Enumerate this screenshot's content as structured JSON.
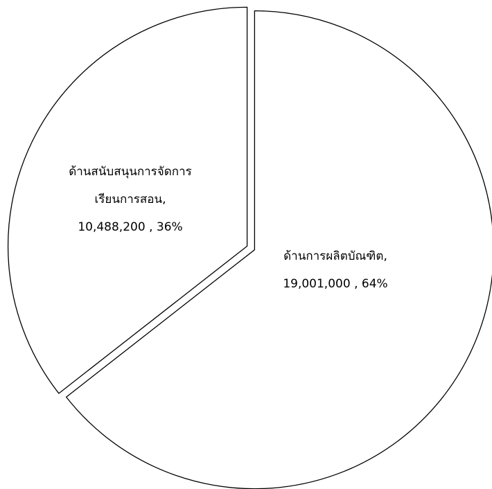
{
  "chart_data": {
    "type": "pie",
    "title": "",
    "slices": [
      {
        "name": "ด้านการผลิตบัณฑิต",
        "value": 19001000,
        "percent": 64,
        "label_lines": [
          "ด้านการผลิตบัณฑิต,",
          "19,001,000 , 64%"
        ]
      },
      {
        "name": "ด้านสนับสนุนการจัดการเรียนการสอน",
        "value": 10488200,
        "percent": 36,
        "label_lines": [
          "ด้านสนับสนุนการจัดการ",
          "เรียนการสอน,",
          "10,488,200 , 36%"
        ]
      }
    ],
    "fill_color": "#ffffff",
    "stroke_color": "#000000",
    "legend": "none",
    "exploded": true
  }
}
